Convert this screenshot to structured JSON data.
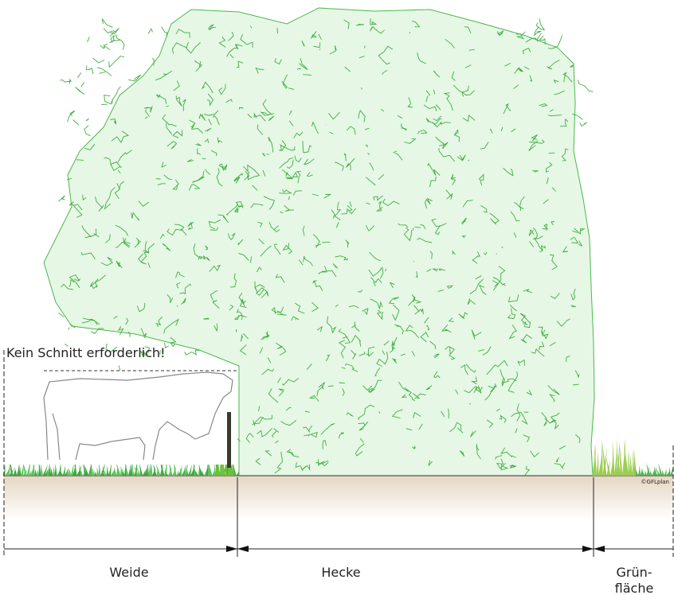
{
  "annotation": "Kein Schnitt erforderlich!",
  "zones": [
    {
      "lines": [
        "Weide"
      ]
    },
    {
      "lines": [
        "Hecke"
      ]
    },
    {
      "lines": [
        "Grün-",
        "fläche"
      ]
    }
  ],
  "copyright": "©GFLplan"
}
